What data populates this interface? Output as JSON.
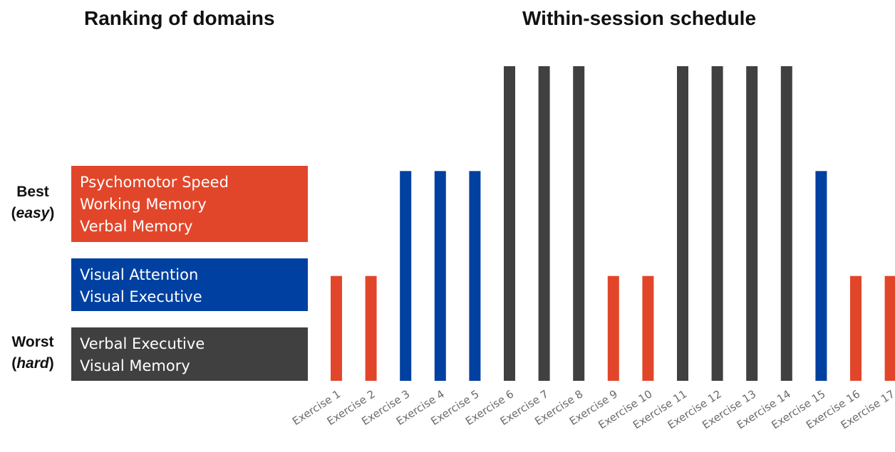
{
  "titles": {
    "left": "Ranking of domains",
    "right": "Within-session schedule"
  },
  "ranking": {
    "best": {
      "label": "Best",
      "sub": "easy"
    },
    "worst": {
      "label": "Worst",
      "sub": "hard"
    },
    "groups": [
      {
        "level": 3,
        "color": "#e2462a",
        "domains": [
          "Psychomotor Speed",
          "Working Memory",
          "Verbal Memory"
        ]
      },
      {
        "level": 2,
        "color": "#0040a0",
        "domains": [
          "Visual Attention",
          "Visual Executive"
        ]
      },
      {
        "level": 1,
        "color": "#404040",
        "domains": [
          "Verbal Executive",
          "Visual Memory"
        ]
      }
    ]
  },
  "chart_data": {
    "type": "bar",
    "title": "Within-session schedule",
    "categories": [
      "Exercise 1",
      "Exercise 2",
      "Exercise 3",
      "Exercise 4",
      "Exercise 5",
      "Exercise 6",
      "Exercise 7",
      "Exercise 8",
      "Exercise 9",
      "Exercise 10",
      "Exercise 11",
      "Exercise 12",
      "Exercise 13",
      "Exercise 14",
      "Exercise 15",
      "Exercise 16",
      "Exercise 17"
    ],
    "values": [
      1,
      1,
      2,
      2,
      2,
      3,
      3,
      3,
      1,
      1,
      3,
      3,
      3,
      3,
      2,
      1,
      1
    ],
    "colors": [
      "#e2462a",
      "#e2462a",
      "#0040a0",
      "#0040a0",
      "#0040a0",
      "#404040",
      "#404040",
      "#404040",
      "#e2462a",
      "#e2462a",
      "#404040",
      "#404040",
      "#404040",
      "#404040",
      "#0040a0",
      "#e2462a",
      "#e2462a"
    ],
    "ylim": [
      0,
      3
    ],
    "grid": false,
    "legend": "none",
    "xlabel": "",
    "ylabel": ""
  }
}
